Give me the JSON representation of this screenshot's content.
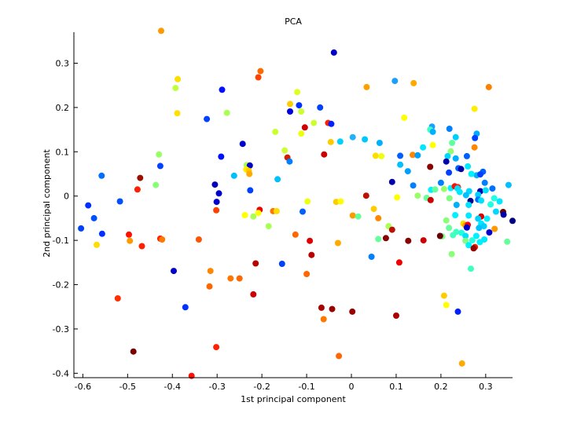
{
  "chart_data": {
    "type": "scatter",
    "title": "PCA",
    "xlabel": "1st principal component",
    "ylabel": "2nd principal component",
    "xlim": [
      -0.62,
      0.36
    ],
    "ylim": [
      -0.41,
      0.37
    ],
    "xticks": [
      "-0.6",
      "-0.5",
      "-0.4",
      "-0.3",
      "-0.2",
      "-0.1",
      "0",
      "0.1",
      "0.2",
      "0.3"
    ],
    "xtick_values": [
      -0.6,
      -0.5,
      -0.4,
      -0.3,
      -0.2,
      -0.1,
      0,
      0.1,
      0.2,
      0.3
    ],
    "yticks": [
      "-0.4",
      "-0.3",
      "-0.2",
      "-0.1",
      "0",
      "0.1",
      "0.2",
      "0.3"
    ],
    "ytick_values": [
      -0.4,
      -0.3,
      -0.2,
      -0.1,
      0,
      0.1,
      0.2,
      0.3
    ],
    "grid": false,
    "legend": "none",
    "points": [
      {
        "x": -0.425,
        "y": 0.373,
        "color": "#ff9900"
      },
      {
        "x": -0.039,
        "y": 0.324,
        "color": "#0000cc"
      },
      {
        "x": -0.203,
        "y": 0.282,
        "color": "#ff6a00"
      },
      {
        "x": -0.208,
        "y": 0.268,
        "color": "#ff4000"
      },
      {
        "x": -0.388,
        "y": 0.264,
        "color": "#ffdd00"
      },
      {
        "x": 0.097,
        "y": 0.26,
        "color": "#1a9fff"
      },
      {
        "x": 0.139,
        "y": 0.255,
        "color": "#ffaa00"
      },
      {
        "x": -0.393,
        "y": 0.244,
        "color": "#bfff40"
      },
      {
        "x": 0.034,
        "y": 0.246,
        "color": "#ff9f00"
      },
      {
        "x": 0.307,
        "y": 0.246,
        "color": "#ff8000"
      },
      {
        "x": -0.289,
        "y": 0.24,
        "color": "#0010ff"
      },
      {
        "x": -0.121,
        "y": 0.235,
        "color": "#e0ff20"
      },
      {
        "x": -0.137,
        "y": 0.208,
        "color": "#ffcc00"
      },
      {
        "x": -0.117,
        "y": 0.205,
        "color": "#0030ff"
      },
      {
        "x": -0.07,
        "y": 0.2,
        "color": "#0040ff"
      },
      {
        "x": 0.275,
        "y": 0.197,
        "color": "#ffee00"
      },
      {
        "x": -0.137,
        "y": 0.191,
        "color": "#0000dd"
      },
      {
        "x": -0.112,
        "y": 0.191,
        "color": "#ccff33"
      },
      {
        "x": -0.278,
        "y": 0.188,
        "color": "#aaff55"
      },
      {
        "x": -0.389,
        "y": 0.187,
        "color": "#ffe000"
      },
      {
        "x": 0.118,
        "y": 0.177,
        "color": "#ffff00"
      },
      {
        "x": -0.323,
        "y": 0.174,
        "color": "#0040ff"
      },
      {
        "x": -0.084,
        "y": 0.165,
        "color": "#ccff33"
      },
      {
        "x": -0.052,
        "y": 0.165,
        "color": "#ff2000"
      },
      {
        "x": -0.045,
        "y": 0.163,
        "color": "#0020ff"
      },
      {
        "x": 0.18,
        "y": 0.157,
        "color": "#1a9fff"
      },
      {
        "x": -0.104,
        "y": 0.155,
        "color": "#cc0000"
      },
      {
        "x": 0.219,
        "y": 0.152,
        "color": "#0080ff"
      },
      {
        "x": 0.176,
        "y": 0.15,
        "color": "#40ffbf"
      },
      {
        "x": 0.182,
        "y": 0.145,
        "color": "#00b0ff"
      },
      {
        "x": -0.17,
        "y": 0.145,
        "color": "#ccff33"
      },
      {
        "x": -0.112,
        "y": 0.141,
        "color": "#eeff11"
      },
      {
        "x": 0.28,
        "y": 0.141,
        "color": "#00aaff"
      },
      {
        "x": 0.233,
        "y": 0.133,
        "color": "#00d0ff"
      },
      {
        "x": 0.276,
        "y": 0.131,
        "color": "#0040ff"
      },
      {
        "x": 0.003,
        "y": 0.133,
        "color": "#20b0ff"
      },
      {
        "x": 0.03,
        "y": 0.128,
        "color": "#00c8ff"
      },
      {
        "x": -0.025,
        "y": 0.123,
        "color": "#00d0ff"
      },
      {
        "x": 0.063,
        "y": 0.12,
        "color": "#00b0ff"
      },
      {
        "x": -0.046,
        "y": 0.122,
        "color": "#ffcc00"
      },
      {
        "x": -0.243,
        "y": 0.118,
        "color": "#0000cc"
      },
      {
        "x": 0.225,
        "y": 0.12,
        "color": "#60ff9f"
      },
      {
        "x": 0.182,
        "y": 0.115,
        "color": "#ffff00"
      },
      {
        "x": 0.275,
        "y": 0.11,
        "color": "#ff8800"
      },
      {
        "x": 0.16,
        "y": 0.11,
        "color": "#00e8ff"
      },
      {
        "x": -0.149,
        "y": 0.103,
        "color": "#ccff33"
      },
      {
        "x": 0.222,
        "y": 0.101,
        "color": "#90ff70"
      },
      {
        "x": -0.43,
        "y": 0.094,
        "color": "#99ff66"
      },
      {
        "x": -0.061,
        "y": 0.094,
        "color": "#cc0000"
      },
      {
        "x": 0.054,
        "y": 0.091,
        "color": "#ffdd00"
      },
      {
        "x": 0.109,
        "y": 0.091,
        "color": "#0060ff"
      },
      {
        "x": 0.137,
        "y": 0.093,
        "color": "#ff8800"
      },
      {
        "x": 0.215,
        "y": 0.09,
        "color": "#00d8ff"
      },
      {
        "x": 0.233,
        "y": 0.085,
        "color": "#00b0ff"
      },
      {
        "x": -0.291,
        "y": 0.089,
        "color": "#0010ff"
      },
      {
        "x": 0.148,
        "y": 0.092,
        "color": "#00a0ff"
      },
      {
        "x": 0.258,
        "y": 0.09,
        "color": "#0060ff"
      },
      {
        "x": -0.143,
        "y": 0.087,
        "color": "#cc2200"
      },
      {
        "x": 0.067,
        "y": 0.09,
        "color": "#eeff11"
      },
      {
        "x": 0.212,
        "y": 0.078,
        "color": "#0000aa"
      },
      {
        "x": -0.138,
        "y": 0.078,
        "color": "#0080ff"
      },
      {
        "x": 0.109,
        "y": 0.071,
        "color": "#00c0ff"
      },
      {
        "x": -0.234,
        "y": 0.07,
        "color": "#aaff55"
      },
      {
        "x": -0.227,
        "y": 0.069,
        "color": "#0000cc"
      },
      {
        "x": -0.427,
        "y": 0.068,
        "color": "#0040ff"
      },
      {
        "x": 0.176,
        "y": 0.066,
        "color": "#880000"
      },
      {
        "x": 0.26,
        "y": 0.067,
        "color": "#00e8ff"
      },
      {
        "x": 0.239,
        "y": 0.063,
        "color": "#0060ff"
      },
      {
        "x": 0.245,
        "y": 0.061,
        "color": "#0000aa"
      },
      {
        "x": -0.235,
        "y": 0.06,
        "color": "#ffee00"
      },
      {
        "x": -0.229,
        "y": 0.057,
        "color": "#ffcc00"
      },
      {
        "x": 0.126,
        "y": 0.056,
        "color": "#00a0ff"
      },
      {
        "x": 0.294,
        "y": 0.055,
        "color": "#0060ff"
      },
      {
        "x": 0.218,
        "y": 0.053,
        "color": "#0040ff"
      },
      {
        "x": -0.228,
        "y": 0.05,
        "color": "#ffaa00"
      },
      {
        "x": 0.28,
        "y": 0.047,
        "color": "#00b0ff"
      },
      {
        "x": -0.558,
        "y": 0.046,
        "color": "#0070ff"
      },
      {
        "x": -0.262,
        "y": 0.046,
        "color": "#00c0ff"
      },
      {
        "x": 0.288,
        "y": 0.049,
        "color": "#0040ff"
      },
      {
        "x": 0.268,
        "y": 0.05,
        "color": "#00f0ff"
      },
      {
        "x": -0.472,
        "y": 0.041,
        "color": "#991100"
      },
      {
        "x": -0.165,
        "y": 0.038,
        "color": "#00c0ff"
      },
      {
        "x": 0.2,
        "y": 0.03,
        "color": "#0080ff"
      },
      {
        "x": 0.091,
        "y": 0.032,
        "color": "#0000aa"
      },
      {
        "x": 0.298,
        "y": 0.03,
        "color": "#0080ff"
      },
      {
        "x": -0.305,
        "y": 0.026,
        "color": "#0000bb"
      },
      {
        "x": 0.138,
        "y": 0.024,
        "color": "#0080ff"
      },
      {
        "x": 0.351,
        "y": 0.025,
        "color": "#00c0ff"
      },
      {
        "x": 0.222,
        "y": 0.018,
        "color": "#00f0ff"
      },
      {
        "x": -0.437,
        "y": 0.025,
        "color": "#88ff77"
      },
      {
        "x": 0.231,
        "y": 0.022,
        "color": "#ff1000"
      },
      {
        "x": 0.238,
        "y": 0.02,
        "color": "#ff2000"
      },
      {
        "x": 0.237,
        "y": 0.017,
        "color": "#00e0ff"
      },
      {
        "x": 0.207,
        "y": 0.016,
        "color": "#99ff66"
      },
      {
        "x": -0.478,
        "y": 0.015,
        "color": "#ff2000"
      },
      {
        "x": -0.226,
        "y": 0.013,
        "color": "#0040ff"
      },
      {
        "x": 0.178,
        "y": 0.014,
        "color": "#00f0ff"
      },
      {
        "x": 0.315,
        "y": 0.017,
        "color": "#0070ff"
      },
      {
        "x": 0.263,
        "y": 0.011,
        "color": "#00d8ff"
      },
      {
        "x": 0.242,
        "y": 0.009,
        "color": "#00e8ff"
      },
      {
        "x": 0.288,
        "y": 0.011,
        "color": "#0000aa"
      },
      {
        "x": 0.3,
        "y": 0.013,
        "color": "#00e0ff"
      },
      {
        "x": 0.187,
        "y": 0.015,
        "color": "#66ff99"
      },
      {
        "x": -0.296,
        "y": 0.006,
        "color": "#0000cc"
      },
      {
        "x": 0.033,
        "y": 0.001,
        "color": "#bb1100"
      },
      {
        "x": 0.283,
        "y": 0.003,
        "color": "#00d0ff"
      },
      {
        "x": 0.256,
        "y": 0.002,
        "color": "#00c0ff"
      },
      {
        "x": 0.148,
        "y": 0.001,
        "color": "#99ff66"
      },
      {
        "x": 0.102,
        "y": -0.003,
        "color": "#ffff00"
      },
      {
        "x": 0.168,
        "y": -0.004,
        "color": "#66ff99"
      },
      {
        "x": 0.219,
        "y": -0.005,
        "color": "#80ff80"
      },
      {
        "x": 0.319,
        "y": -0.005,
        "color": "#20ffdf"
      },
      {
        "x": 0.283,
        "y": -0.008,
        "color": "#0070ff"
      },
      {
        "x": 0.29,
        "y": -0.01,
        "color": "#00e0ff"
      },
      {
        "x": 0.177,
        "y": -0.009,
        "color": "#cc0000"
      },
      {
        "x": 0.266,
        "y": -0.011,
        "color": "#000088"
      },
      {
        "x": 0.331,
        "y": -0.012,
        "color": "#00e8ff"
      },
      {
        "x": -0.301,
        "y": -0.013,
        "color": "#0000cc"
      },
      {
        "x": -0.588,
        "y": -0.021,
        "color": "#0030ff"
      },
      {
        "x": -0.517,
        "y": -0.012,
        "color": "#0050ff"
      },
      {
        "x": -0.098,
        "y": -0.012,
        "color": "#eeff11"
      },
      {
        "x": -0.034,
        "y": -0.013,
        "color": "#ffcc00"
      },
      {
        "x": -0.024,
        "y": -0.012,
        "color": "#ffff00"
      },
      {
        "x": 0.311,
        "y": -0.019,
        "color": "#20ffdf"
      },
      {
        "x": 0.235,
        "y": -0.02,
        "color": "#00b0ff"
      },
      {
        "x": 0.262,
        "y": -0.02,
        "color": "#00e0ff"
      },
      {
        "x": -0.205,
        "y": -0.031,
        "color": "#ee0000"
      },
      {
        "x": -0.302,
        "y": -0.032,
        "color": "#ff4000"
      },
      {
        "x": -0.175,
        "y": -0.034,
        "color": "#ff7700"
      },
      {
        "x": -0.167,
        "y": -0.034,
        "color": "#ffdd00"
      },
      {
        "x": -0.208,
        "y": -0.038,
        "color": "#ffff00"
      },
      {
        "x": -0.109,
        "y": -0.035,
        "color": "#0060ff"
      },
      {
        "x": 0.05,
        "y": -0.029,
        "color": "#ffcc00"
      },
      {
        "x": 0.323,
        "y": -0.035,
        "color": "#00d8ff"
      },
      {
        "x": 0.339,
        "y": -0.036,
        "color": "#660000"
      },
      {
        "x": 0.34,
        "y": -0.042,
        "color": "#0000aa"
      },
      {
        "x": 0.262,
        "y": -0.044,
        "color": "#00e8ff"
      },
      {
        "x": 0.232,
        "y": -0.043,
        "color": "#00f0ff"
      },
      {
        "x": 0.29,
        "y": -0.046,
        "color": "#dd0000"
      },
      {
        "x": -0.238,
        "y": -0.043,
        "color": "#ffff00"
      },
      {
        "x": 0.003,
        "y": -0.044,
        "color": "#ff9900"
      },
      {
        "x": 0.015,
        "y": -0.046,
        "color": "#66ff99"
      },
      {
        "x": 0.283,
        "y": -0.051,
        "color": "#00d0ff"
      },
      {
        "x": 0.212,
        "y": -0.055,
        "color": "#88ff77"
      },
      {
        "x": 0.06,
        "y": -0.05,
        "color": "#ff8800"
      },
      {
        "x": -0.219,
        "y": -0.046,
        "color": "#aaff55"
      },
      {
        "x": 0.303,
        "y": -0.051,
        "color": "#00f0ff"
      },
      {
        "x": 0.36,
        "y": -0.056,
        "color": "#000080"
      },
      {
        "x": -0.575,
        "y": -0.05,
        "color": "#0050ff"
      },
      {
        "x": 0.29,
        "y": -0.062,
        "color": "#00e8ff"
      },
      {
        "x": 0.296,
        "y": -0.068,
        "color": "#00d0ff"
      },
      {
        "x": 0.285,
        "y": -0.072,
        "color": "#00c0ff"
      },
      {
        "x": -0.604,
        "y": -0.073,
        "color": "#0040ff"
      },
      {
        "x": 0.25,
        "y": -0.062,
        "color": "#ffdd00"
      },
      {
        "x": 0.255,
        "y": -0.066,
        "color": "#ff9900"
      },
      {
        "x": 0.26,
        "y": -0.065,
        "color": "#ff0000"
      },
      {
        "x": 0.083,
        "y": -0.068,
        "color": "#aaff55"
      },
      {
        "x": -0.185,
        "y": -0.068,
        "color": "#aaff55"
      },
      {
        "x": 0.218,
        "y": -0.072,
        "color": "#66ff99"
      },
      {
        "x": 0.234,
        "y": -0.081,
        "color": "#40ffbf"
      },
      {
        "x": 0.32,
        "y": -0.074,
        "color": "#ff9900"
      },
      {
        "x": 0.258,
        "y": -0.071,
        "color": "#0000cc"
      },
      {
        "x": 0.091,
        "y": -0.076,
        "color": "#bb1100"
      },
      {
        "x": 0.246,
        "y": -0.083,
        "color": "#20ffdf"
      },
      {
        "x": 0.227,
        "y": -0.088,
        "color": "#40ffbf"
      },
      {
        "x": 0.203,
        "y": -0.091,
        "color": "#77ff88"
      },
      {
        "x": 0.255,
        "y": -0.09,
        "color": "#00e0ff"
      },
      {
        "x": 0.279,
        "y": -0.09,
        "color": "#00f0ff"
      },
      {
        "x": 0.308,
        "y": -0.082,
        "color": "#0000cc"
      },
      {
        "x": -0.557,
        "y": -0.085,
        "color": "#0030ff"
      },
      {
        "x": -0.497,
        "y": -0.087,
        "color": "#ff1000"
      },
      {
        "x": -0.125,
        "y": -0.087,
        "color": "#ff6600"
      },
      {
        "x": 0.198,
        "y": -0.09,
        "color": "#660000"
      },
      {
        "x": -0.427,
        "y": -0.096,
        "color": "#ff2000"
      },
      {
        "x": -0.423,
        "y": -0.098,
        "color": "#ff7700"
      },
      {
        "x": -0.495,
        "y": -0.101,
        "color": "#ff9900"
      },
      {
        "x": 0.27,
        "y": -0.1,
        "color": "#20ffdf"
      },
      {
        "x": -0.341,
        "y": -0.098,
        "color": "#ff5500"
      },
      {
        "x": 0.255,
        "y": -0.101,
        "color": "#80ff80"
      },
      {
        "x": 0.297,
        "y": -0.098,
        "color": "#00e8ff"
      },
      {
        "x": 0.287,
        "y": -0.104,
        "color": "#00f0ff"
      },
      {
        "x": 0.077,
        "y": -0.095,
        "color": "#880000"
      },
      {
        "x": 0.06,
        "y": -0.097,
        "color": "#66ff99"
      },
      {
        "x": 0.161,
        "y": -0.1,
        "color": "#cc0000"
      },
      {
        "x": 0.127,
        "y": -0.101,
        "color": "#880000"
      },
      {
        "x": -0.093,
        "y": -0.101,
        "color": "#dd0000"
      },
      {
        "x": 0.348,
        "y": -0.103,
        "color": "#66ff99"
      },
      {
        "x": -0.03,
        "y": -0.106,
        "color": "#ffaa00"
      },
      {
        "x": 0.262,
        "y": -0.111,
        "color": "#00f0ff"
      },
      {
        "x": -0.569,
        "y": -0.11,
        "color": "#ffdd00"
      },
      {
        "x": -0.468,
        "y": -0.113,
        "color": "#ff2000"
      },
      {
        "x": 0.276,
        "y": -0.115,
        "color": "#ee2200"
      },
      {
        "x": 0.273,
        "y": -0.118,
        "color": "#990000"
      },
      {
        "x": 0.224,
        "y": -0.131,
        "color": "#88ff77"
      },
      {
        "x": -0.089,
        "y": -0.133,
        "color": "#bb0000"
      },
      {
        "x": 0.045,
        "y": -0.137,
        "color": "#0080ff"
      },
      {
        "x": 0.107,
        "y": -0.15,
        "color": "#ee0000"
      },
      {
        "x": -0.214,
        "y": -0.152,
        "color": "#bb0000"
      },
      {
        "x": -0.155,
        "y": -0.153,
        "color": "#0040ff"
      },
      {
        "x": 0.267,
        "y": -0.164,
        "color": "#40ffbf"
      },
      {
        "x": -0.397,
        "y": -0.169,
        "color": "#0000cc"
      },
      {
        "x": -0.315,
        "y": -0.169,
        "color": "#ff8800"
      },
      {
        "x": -0.1,
        "y": -0.176,
        "color": "#ff6600"
      },
      {
        "x": -0.27,
        "y": -0.186,
        "color": "#ff7700"
      },
      {
        "x": -0.25,
        "y": -0.186,
        "color": "#ff6600"
      },
      {
        "x": -0.317,
        "y": -0.204,
        "color": "#ff6600"
      },
      {
        "x": -0.219,
        "y": -0.222,
        "color": "#cc0000"
      },
      {
        "x": 0.207,
        "y": -0.225,
        "color": "#ffcc00"
      },
      {
        "x": -0.522,
        "y": -0.231,
        "color": "#ff3000"
      },
      {
        "x": 0.212,
        "y": -0.246,
        "color": "#ffff00"
      },
      {
        "x": -0.371,
        "y": -0.251,
        "color": "#0030ff"
      },
      {
        "x": -0.067,
        "y": -0.252,
        "color": "#aa0000"
      },
      {
        "x": -0.043,
        "y": -0.255,
        "color": "#990000"
      },
      {
        "x": 0.238,
        "y": -0.261,
        "color": "#0020ff"
      },
      {
        "x": 0.002,
        "y": -0.261,
        "color": "#990000"
      },
      {
        "x": -0.062,
        "y": -0.278,
        "color": "#ff7700"
      },
      {
        "x": 0.1,
        "y": -0.27,
        "color": "#aa0000"
      },
      {
        "x": -0.302,
        "y": -0.341,
        "color": "#ff2000"
      },
      {
        "x": -0.487,
        "y": -0.351,
        "color": "#770000"
      },
      {
        "x": -0.028,
        "y": -0.361,
        "color": "#ff6600"
      },
      {
        "x": 0.247,
        "y": -0.378,
        "color": "#ffaa00"
      },
      {
        "x": -0.357,
        "y": -0.406,
        "color": "#ff1000"
      }
    ]
  }
}
